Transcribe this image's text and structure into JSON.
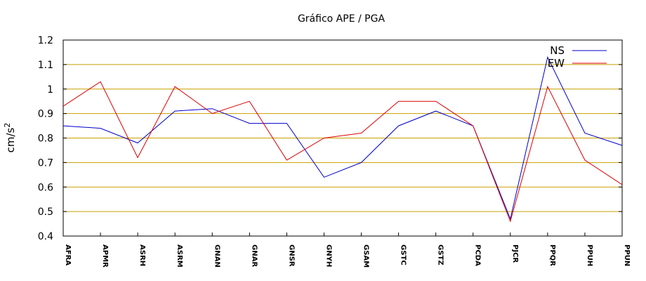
{
  "chart_data": {
    "type": "line",
    "title": "Gráfico  APE / PGA",
    "xlabel": "",
    "ylabel": "cm/s",
    "ylabel_sup": "2",
    "categories": [
      "AFRA",
      "APMR",
      "ASRH",
      "ASRM",
      "GNAN",
      "GNAR",
      "GNSR",
      "GNYH",
      "GSAM",
      "GSTC",
      "GSTZ",
      "PCDA",
      "PJCR",
      "PPQR",
      "PPUH",
      "PPUN"
    ],
    "ylim": [
      0.4,
      1.2
    ],
    "yticks": [
      "0.4",
      "0.5",
      "0.6",
      "0.7",
      "0.8",
      "0.9",
      "1",
      "1.1",
      "1.2"
    ],
    "grid": "horizontal",
    "grid_color": "#c8a000",
    "legend_position": "top-right",
    "series": [
      {
        "name": "NS",
        "color": "#0000cc",
        "values": [
          0.85,
          0.84,
          0.78,
          0.91,
          0.92,
          0.86,
          0.86,
          0.64,
          0.7,
          0.85,
          0.91,
          0.85,
          0.47,
          1.13,
          0.82,
          0.77
        ]
      },
      {
        "name": "EW",
        "color": "#dd0000",
        "values": [
          0.93,
          1.03,
          0.72,
          1.01,
          0.9,
          0.95,
          0.71,
          0.8,
          0.82,
          0.95,
          0.95,
          0.85,
          0.46,
          1.01,
          0.71,
          0.61
        ]
      }
    ]
  }
}
